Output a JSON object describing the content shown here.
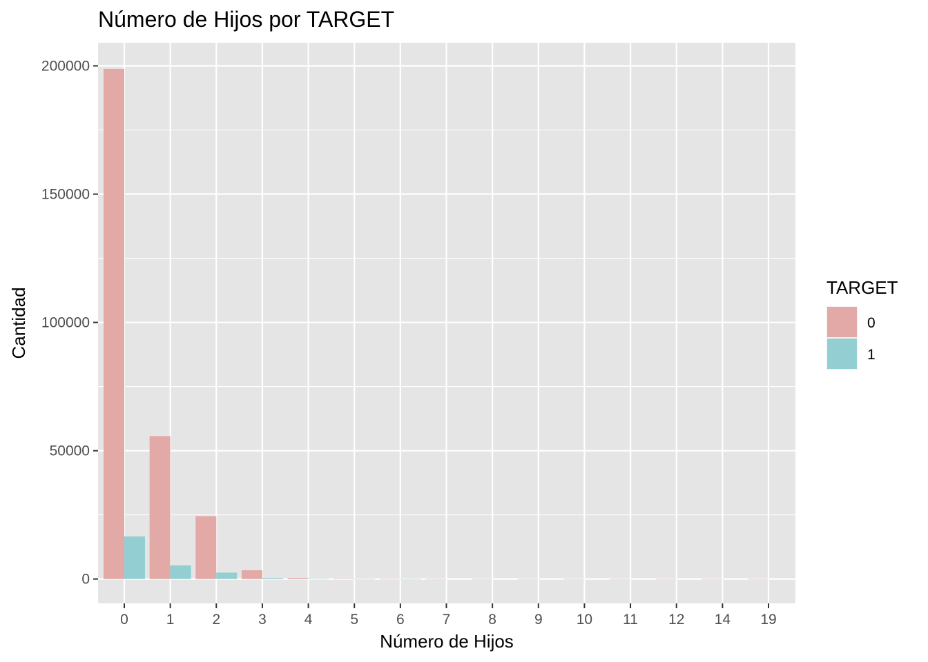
{
  "chart_data": {
    "type": "bar",
    "title": "Número de Hijos por TARGET",
    "xlabel": "Número de Hijos",
    "ylabel": "Cantidad",
    "categories": [
      "0",
      "1",
      "2",
      "3",
      "4",
      "5",
      "6",
      "7",
      "8",
      "9",
      "10",
      "11",
      "12",
      "14",
      "19"
    ],
    "series": [
      {
        "name": "0",
        "color": "#e2a9a6",
        "values": [
          198800,
          55700,
          24500,
          3400,
          400,
          80,
          20,
          7,
          2,
          2,
          2,
          1,
          2,
          3,
          2
        ]
      },
      {
        "name": "1",
        "color": "#93cfd2",
        "values": [
          16600,
          5300,
          2500,
          380,
          60,
          10,
          5,
          0,
          0,
          0,
          0,
          0,
          0,
          0,
          0
        ]
      }
    ],
    "ylim": [
      -9500,
      209000
    ],
    "yticks": [
      0,
      50000,
      100000,
      150000,
      200000
    ],
    "ytick_labels": [
      "0",
      "50000",
      "100000",
      "150000",
      "200000"
    ],
    "grid": true,
    "panel_background": "#e5e5e5",
    "grid_color": "#ffffff",
    "legend": {
      "title": "TARGET",
      "position": "right",
      "entries": [
        "0",
        "1"
      ]
    }
  }
}
